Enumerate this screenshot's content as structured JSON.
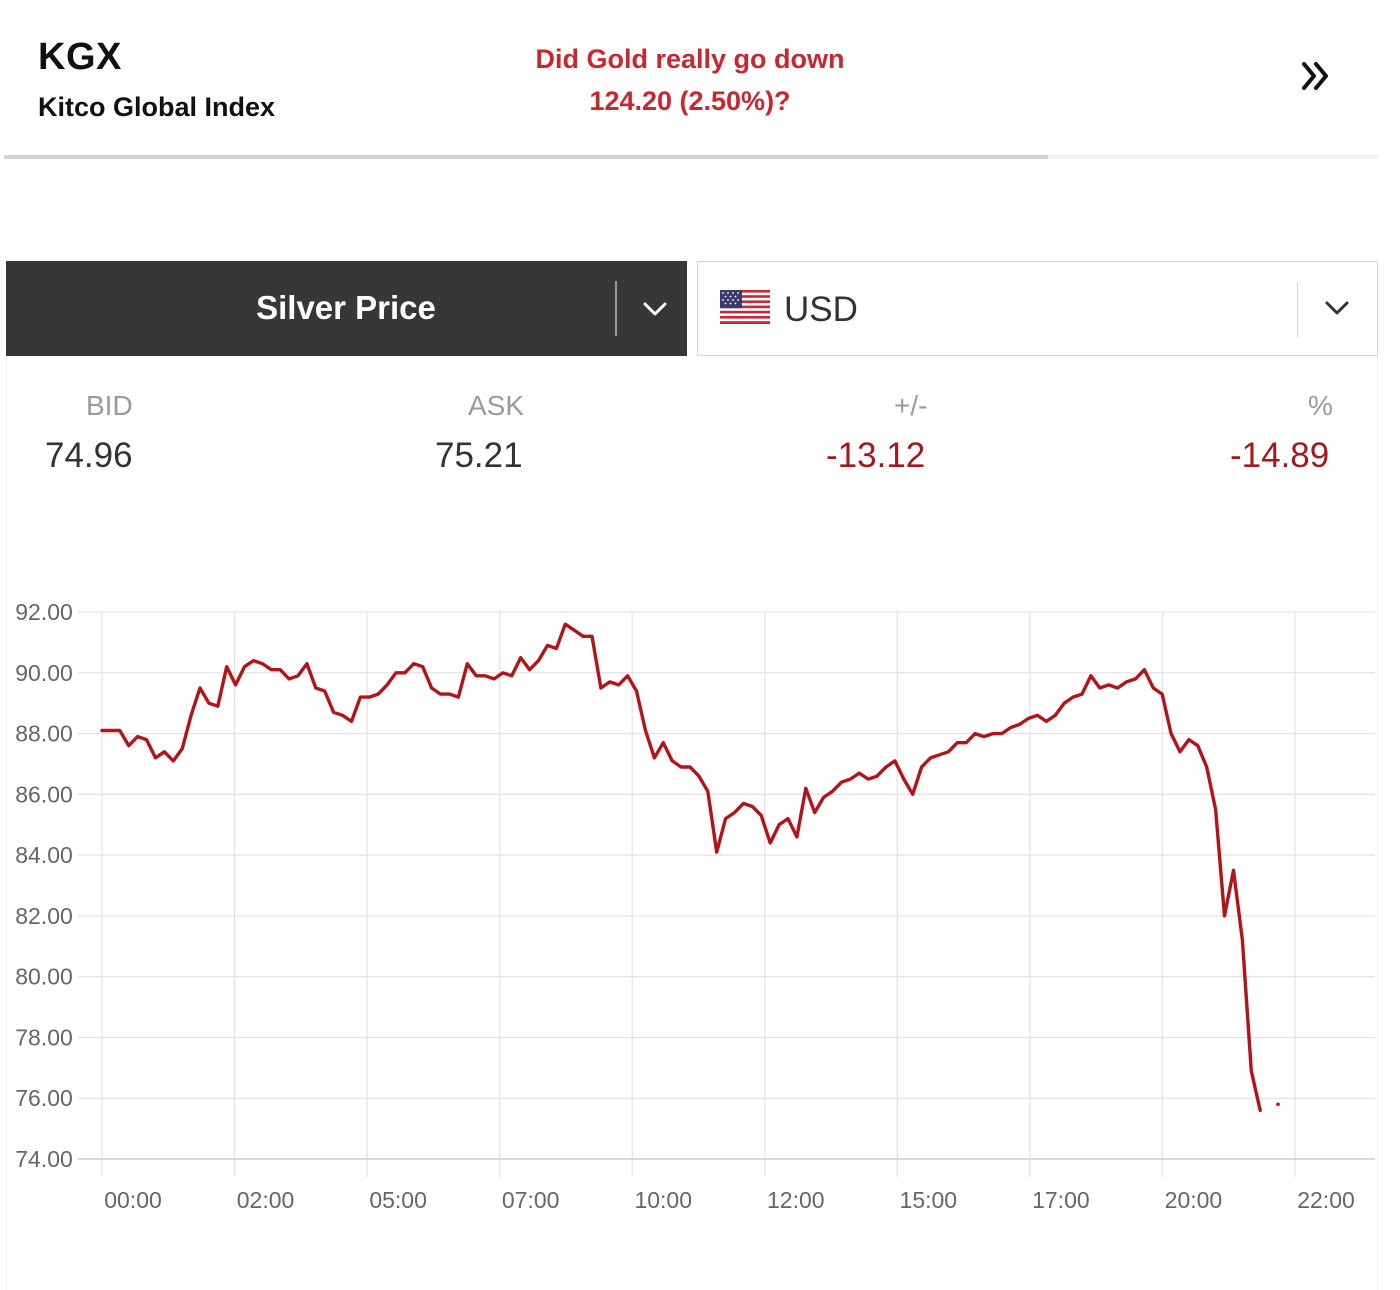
{
  "kgx": {
    "code": "KGX",
    "name": "Kitco Global Index",
    "question_line1": "Did Gold really go down",
    "question_line2": "124.20 (2.50%)?",
    "next_icon": "double-chevron-right-icon",
    "accent_color": "#c8272d",
    "carousel_progress": 0.76
  },
  "selectors": {
    "metal": {
      "label": "Silver Price",
      "icon": "chevron-down-icon"
    },
    "currency": {
      "label": "USD",
      "flag": "us-flag-icon",
      "icon": "chevron-down-icon"
    }
  },
  "quote": {
    "bid_label": "BID",
    "bid": "74.96",
    "ask_label": "ASK",
    "ask": "75.21",
    "change_label": "+/-",
    "change": "-13.12",
    "pct_label": "%",
    "pct": "-14.89",
    "negative_color": "#a5181c"
  },
  "chart_data": {
    "type": "line",
    "title": "",
    "xlabel": "",
    "ylabel": "",
    "ylim": [
      74,
      92
    ],
    "y_ticks": [
      "92.00",
      "90.00",
      "88.00",
      "86.00",
      "84.00",
      "82.00",
      "80.00",
      "78.00",
      "76.00",
      "74.00"
    ],
    "x_ticks": [
      "00:00",
      "02:00",
      "05:00",
      "07:00",
      "10:00",
      "12:00",
      "15:00",
      "17:00",
      "20:00",
      "22:00"
    ],
    "grid": true,
    "line_color": "#b2141a",
    "series": [
      {
        "values": [
          88.1,
          88.1,
          88.1,
          87.6,
          87.9,
          87.8,
          87.2,
          87.4,
          87.1,
          87.5,
          88.6,
          89.5,
          89.0,
          88.9,
          90.2,
          89.6,
          90.2,
          90.4,
          90.3,
          90.1,
          90.1,
          89.8,
          89.9,
          90.3,
          89.5,
          89.4,
          88.7,
          88.6,
          88.4,
          89.2,
          89.2,
          89.3,
          89.6,
          90.0,
          90.0,
          90.3,
          90.2,
          89.5,
          89.3,
          89.3,
          89.2,
          90.3,
          89.9,
          89.9,
          89.8,
          90.0,
          89.9,
          90.5,
          90.1,
          90.4,
          90.9,
          90.8,
          91.6,
          91.4,
          91.2,
          91.2,
          89.5,
          89.7,
          89.6,
          89.9,
          89.4,
          88.1,
          87.2,
          87.7,
          87.1,
          86.9,
          86.9,
          86.6,
          86.1,
          84.1,
          85.2,
          85.4,
          85.7,
          85.6,
          85.3,
          84.4,
          85.0,
          85.2,
          84.6,
          86.2,
          85.4,
          85.9,
          86.1,
          86.4,
          86.5,
          86.7,
          86.5,
          86.6,
          86.9,
          87.1,
          86.5,
          86.0,
          86.9,
          87.2,
          87.3,
          87.4,
          87.7,
          87.7,
          88.0,
          87.9,
          88.0,
          88.0,
          88.2,
          88.3,
          88.5,
          88.6,
          88.4,
          88.6,
          89.0,
          89.2,
          89.3,
          89.9,
          89.5,
          89.6,
          89.5,
          89.7,
          89.8,
          90.1,
          89.5,
          89.3,
          88.0,
          87.4,
          87.8,
          87.6,
          86.9,
          85.5,
          82.0,
          83.5,
          81.2,
          76.9,
          75.6,
          null,
          75.8
        ]
      }
    ]
  }
}
